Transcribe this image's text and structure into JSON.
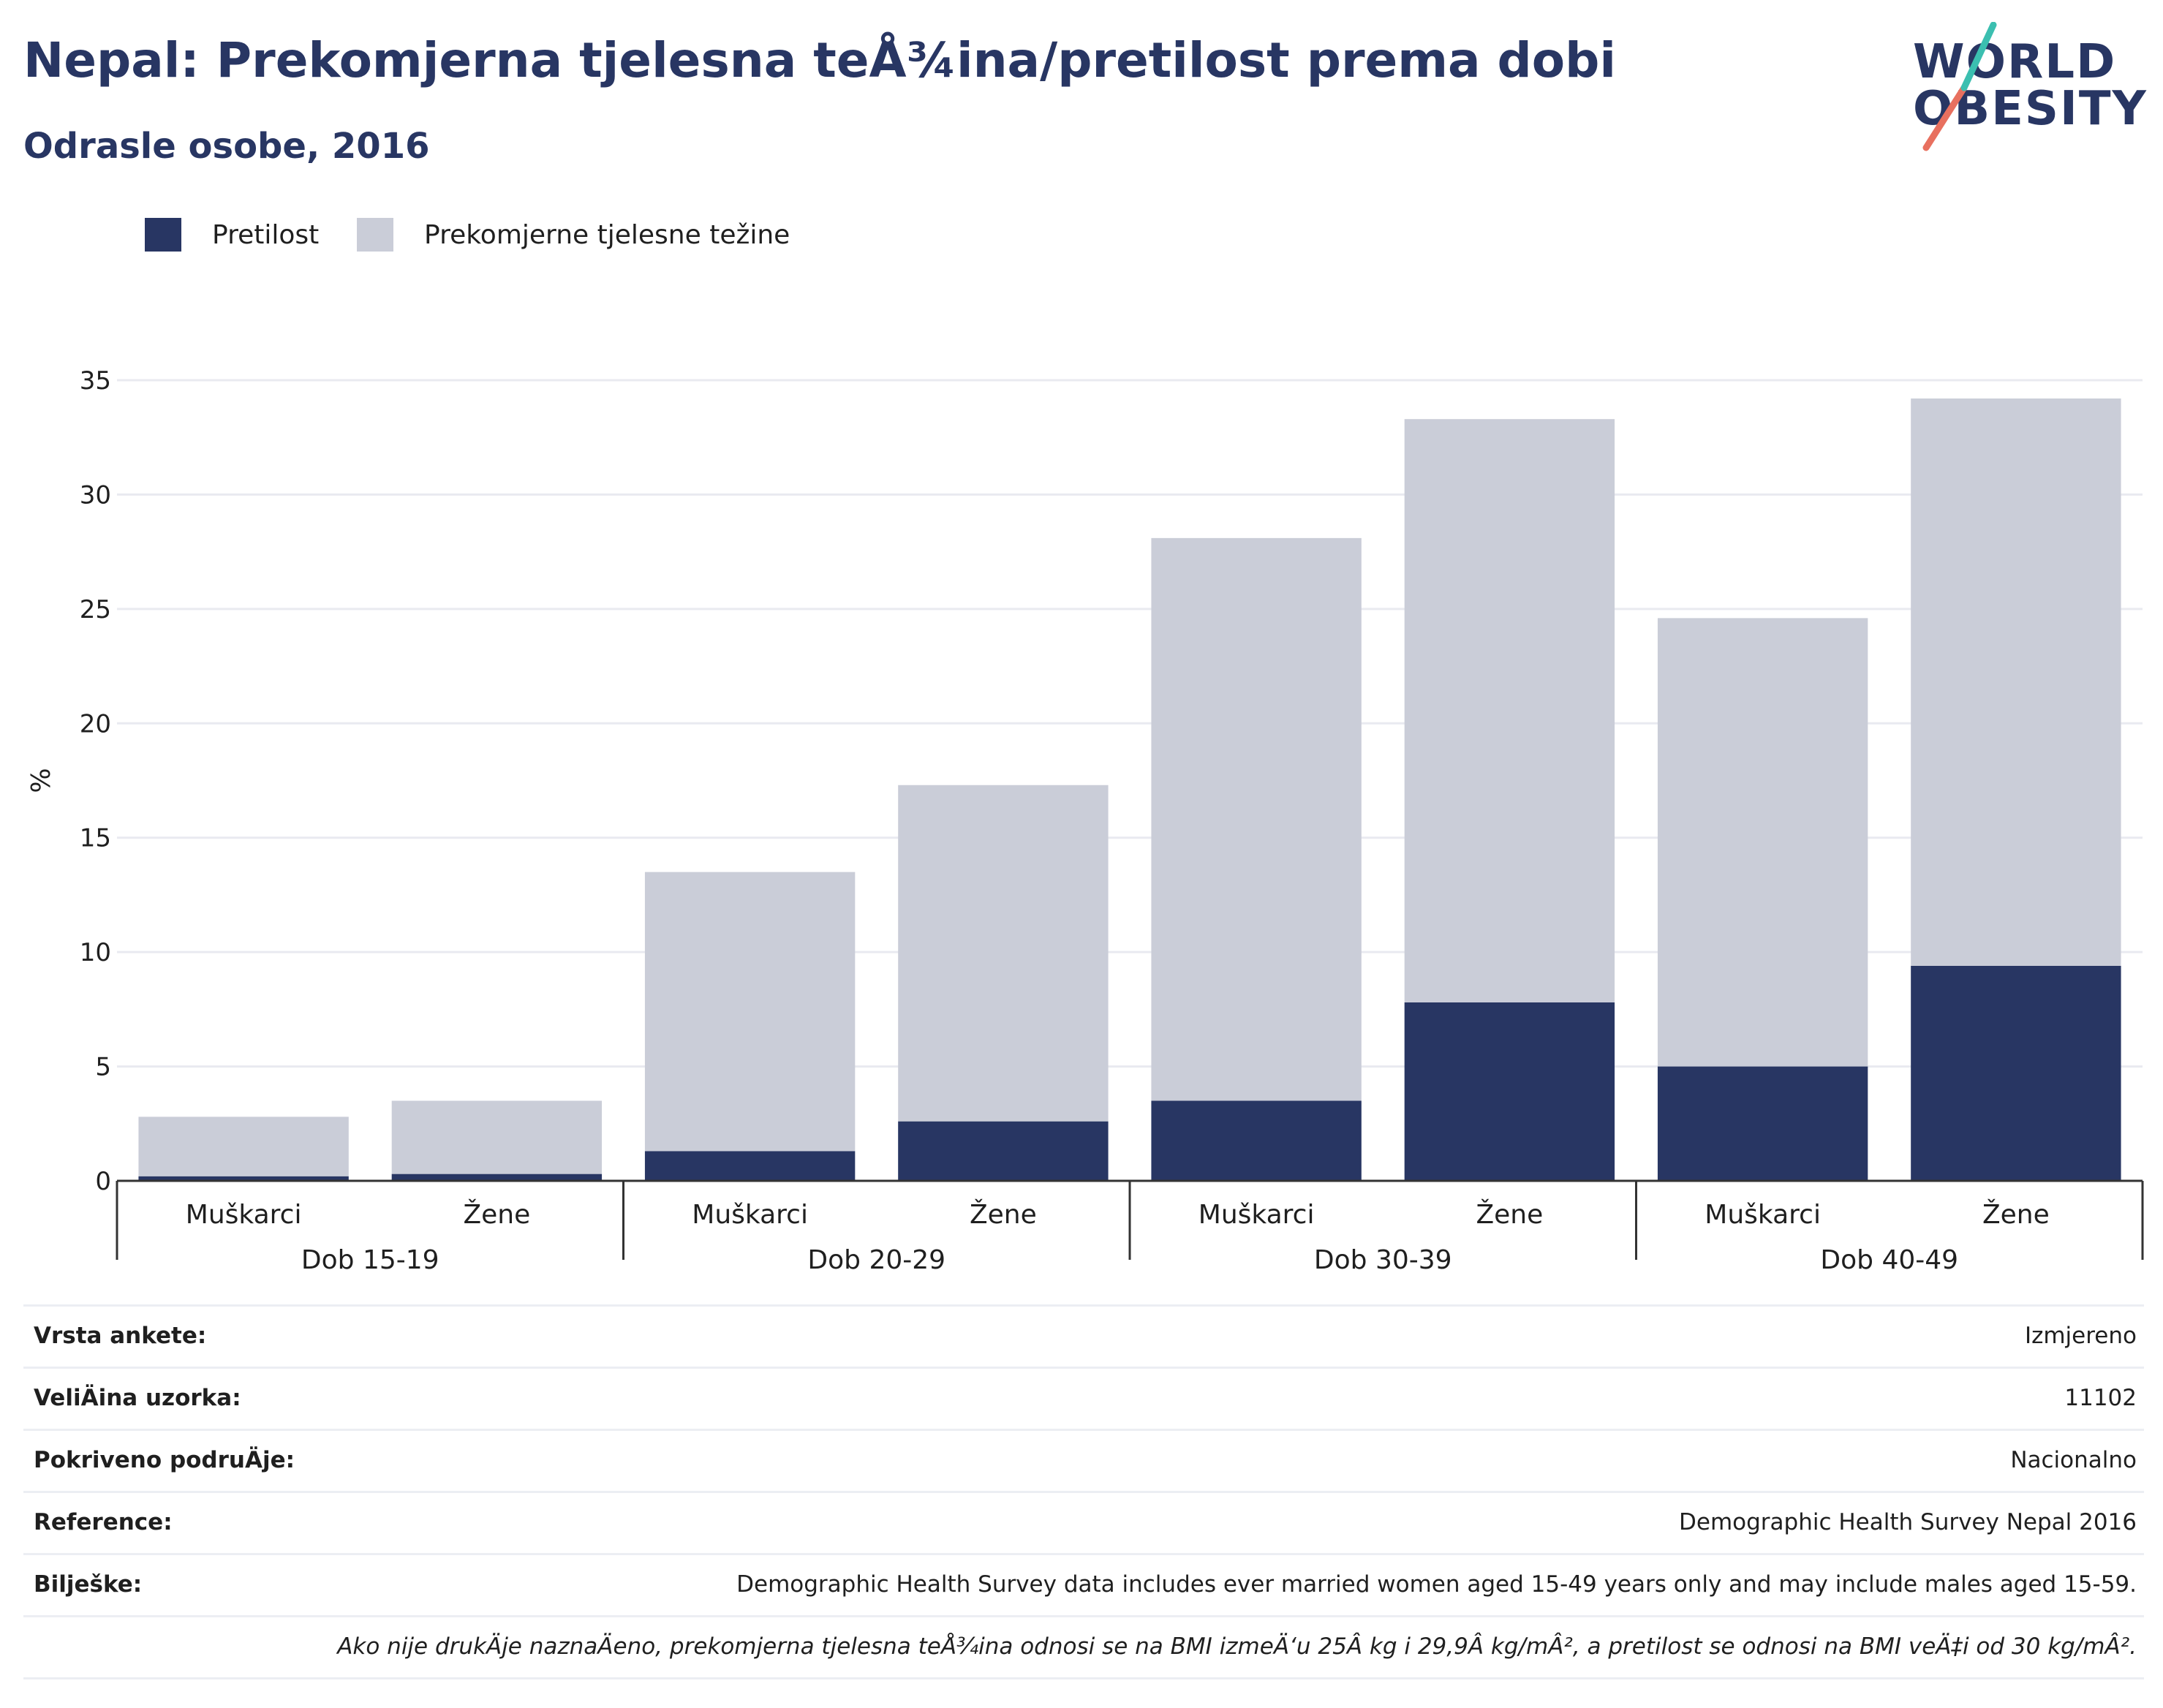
{
  "header": {
    "title": "Nepal: Prekomjerna tjelesna teÅ¾ina/pretilost prema dobi",
    "subtitle": "Odrasle osobe, 2016"
  },
  "logo": {
    "line1": "WORLD",
    "line2": "OBESITY"
  },
  "colors": {
    "obesity": "#283663",
    "overweight": "#cacdd8",
    "grid": "#e9eaf0",
    "axis": "#333333"
  },
  "chart_data": {
    "type": "bar",
    "stacked": true,
    "ylabel": "%",
    "ylim": [
      0,
      35
    ],
    "yticks": [
      0,
      5,
      10,
      15,
      20,
      25,
      30,
      35
    ],
    "grid": true,
    "legend_position": "top-left",
    "groups": [
      "Dob 15-19",
      "Dob 20-29",
      "Dob 30-39",
      "Dob 40-49"
    ],
    "categories": [
      "Muškarci",
      "Žene",
      "Muškarci",
      "Žene",
      "Muškarci",
      "Žene",
      "Muškarci",
      "Žene"
    ],
    "series": [
      {
        "name": "Pretilost",
        "values": [
          0.2,
          0.3,
          1.3,
          2.6,
          3.5,
          7.8,
          5.0,
          9.4
        ]
      },
      {
        "name": "Prekomjerne tjelesne težine",
        "values": [
          2.6,
          3.2,
          12.2,
          14.7,
          24.6,
          25.5,
          19.6,
          24.8
        ]
      }
    ]
  },
  "info": {
    "rows": [
      {
        "key": "Vrsta ankete:",
        "value": "Izmjereno"
      },
      {
        "key": "VeliÄ\u001fina uzorka:",
        "value": "11102"
      },
      {
        "key": "Pokriveno podruÄ\u001fje:",
        "value": "Nacionalno"
      },
      {
        "key": "Reference:",
        "value": "Demographic Health Survey Nepal 2016"
      },
      {
        "key": "Bilješke:",
        "value": "Demographic Health Survey data includes ever married women aged 15-49 years only and may include males aged 15-59."
      }
    ],
    "note": "Ako nije drukÄ\u001fje naznaÄ\u001feno, prekomjerna tjelesna teÅ¾ina odnosi se na BMI izmeÄ‘u 25Â kg i 29,9Â kg/mÂ², a pretilost se odnosi na BMI veÄ‡i od 30 kg/mÂ²."
  }
}
